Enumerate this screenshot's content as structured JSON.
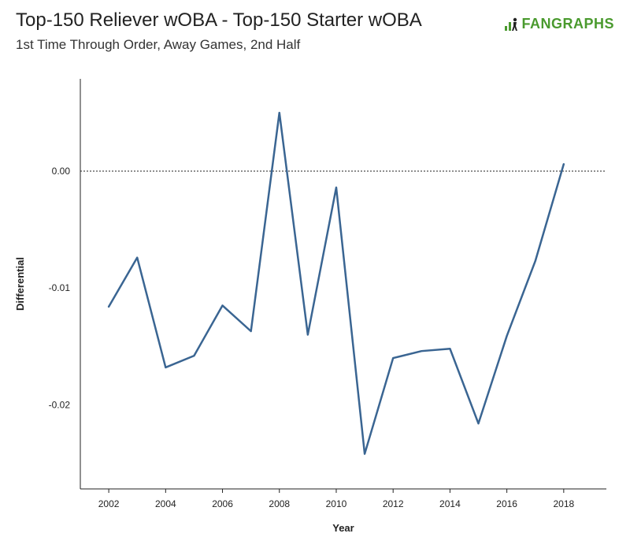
{
  "header": {
    "title": "Top-150 Reliever wOBA - Top-150 Starter wOBA",
    "subtitle": "1st Time Through Order, Away Games, 2nd Half"
  },
  "logo": {
    "text": "FANGRAPHS",
    "color": "#4a9a2e",
    "icon": "fangraphs-logo-icon"
  },
  "chart_data": {
    "type": "line",
    "title": "Top-150 Reliever wOBA - Top-150 Starter wOBA",
    "subtitle": "1st Time Through Order, Away Games, 2nd Half",
    "xlabel": "Year",
    "ylabel": "Differential",
    "x": [
      2002,
      2003,
      2004,
      2005,
      2006,
      2007,
      2008,
      2009,
      2010,
      2011,
      2012,
      2013,
      2014,
      2015,
      2016,
      2017,
      2018
    ],
    "series": [
      {
        "color": "#3a6592",
        "values": [
          -0.0116,
          -0.0074,
          -0.0168,
          -0.0158,
          -0.0115,
          -0.0137,
          0.005,
          -0.014,
          -0.0014,
          -0.0242,
          -0.016,
          -0.0154,
          -0.0152,
          -0.0216,
          -0.0141,
          -0.0077,
          0.0006
        ]
      }
    ],
    "xlim": [
      2001,
      2019.5
    ],
    "ylim": [
      -0.0272,
      0.0079
    ],
    "x_ticks": [
      "2002",
      "2004",
      "2006",
      "2008",
      "2010",
      "2012",
      "2014",
      "2016",
      "2018"
    ],
    "y_ticks": [
      "0.00",
      "-0.01",
      "-0.02"
    ],
    "y_tick_values": [
      0,
      -0.01,
      -0.02
    ],
    "reference_line": 0,
    "grid": false
  }
}
